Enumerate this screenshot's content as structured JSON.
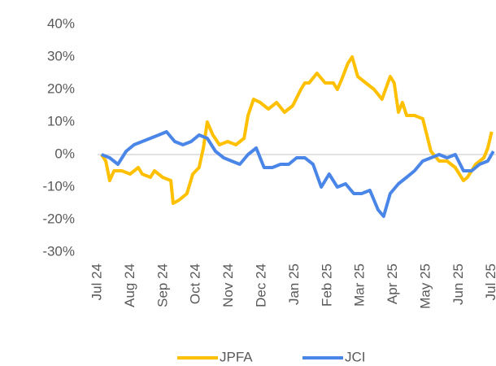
{
  "chart_data": {
    "type": "line",
    "series": [
      {
        "name": "JPFA",
        "color": "#ffc000",
        "x": [
          0.12,
          0.25,
          0.37,
          0.5,
          0.74,
          0.99,
          1.24,
          1.36,
          1.61,
          1.73,
          1.98,
          2.23,
          2.3,
          2.48,
          2.72,
          2.9,
          3.09,
          3.22,
          3.34,
          3.51,
          3.71,
          3.96,
          4.21,
          4.46,
          4.58,
          4.75,
          4.95,
          5.2,
          5.45,
          5.69,
          5.94,
          6.19,
          6.31,
          6.44,
          6.68,
          6.93,
          7.18,
          7.3,
          7.43,
          7.62,
          7.75,
          7.92,
          8.17,
          8.42,
          8.66,
          8.91,
          9.03,
          9.16,
          9.28,
          9.41,
          9.65,
          9.9,
          10.15,
          10.4,
          10.64,
          10.89,
          11.14,
          11.26,
          11.51,
          11.76,
          11.88,
          12.0
        ],
        "values": [
          0,
          -2,
          -8,
          -5,
          -5,
          -6,
          -4,
          -6,
          -7,
          -5,
          -7,
          -8,
          -15,
          -14,
          -12,
          -6,
          -4,
          2,
          10,
          6,
          3,
          4,
          3,
          5,
          12,
          17,
          16,
          14,
          16,
          13,
          15,
          20,
          22,
          22,
          25,
          22,
          22,
          20,
          23,
          28,
          30,
          24,
          22,
          20,
          17,
          24,
          22,
          13,
          16,
          12,
          12,
          11,
          1,
          -2,
          -2,
          -4,
          -8,
          -7,
          -3,
          -1,
          2,
          7
        ]
      },
      {
        "name": "JCI",
        "color": "#4a86e8",
        "x": [
          0.12,
          0.37,
          0.62,
          0.87,
          1.11,
          1.36,
          1.61,
          1.86,
          2.1,
          2.35,
          2.6,
          2.85,
          3.09,
          3.34,
          3.59,
          3.84,
          4.08,
          4.33,
          4.58,
          4.83,
          5.07,
          5.32,
          5.57,
          5.82,
          6.06,
          6.31,
          6.56,
          6.81,
          7.05,
          7.3,
          7.55,
          7.8,
          8.04,
          8.29,
          8.54,
          8.71,
          8.91,
          9.16,
          9.41,
          9.65,
          9.9,
          10.15,
          10.4,
          10.64,
          10.89,
          11.14,
          11.39,
          11.63,
          11.88,
          12.05
        ],
        "values": [
          0,
          -1,
          -3,
          1,
          3,
          4,
          5,
          6,
          7,
          4,
          3,
          4,
          6,
          5,
          1,
          -1,
          -2,
          -3,
          0,
          2,
          -4,
          -4,
          -3,
          -3,
          -1,
          -1,
          -3,
          -10,
          -6,
          -10,
          -9,
          -12,
          -12,
          -11,
          -17,
          -19,
          -12,
          -9,
          -7,
          -5,
          -2,
          -1,
          0,
          -1,
          0,
          -5,
          -5,
          -3,
          -2,
          1
        ]
      }
    ],
    "xlim": [
      0,
      12.13
    ],
    "xticks": [
      {
        "value": 0,
        "label": "Jul 24"
      },
      {
        "value": 1,
        "label": "Aug 24"
      },
      {
        "value": 2,
        "label": "Sep 24"
      },
      {
        "value": 3,
        "label": "Oct 24"
      },
      {
        "value": 4,
        "label": "Nov 24"
      },
      {
        "value": 5,
        "label": "Dec 24"
      },
      {
        "value": 6,
        "label": "Jan 25"
      },
      {
        "value": 7,
        "label": "Feb 25"
      },
      {
        "value": 8,
        "label": "Mar 25"
      },
      {
        "value": 9,
        "label": "Apr 25"
      },
      {
        "value": 10,
        "label": "May 25"
      },
      {
        "value": 11,
        "label": "Jun 25"
      },
      {
        "value": 12,
        "label": "Jul 25"
      }
    ],
    "ylim": [
      -30,
      40
    ],
    "yticks": [
      {
        "value": -30,
        "label": "-30%"
      },
      {
        "value": -20,
        "label": "-20%"
      },
      {
        "value": -10,
        "label": "-10%"
      },
      {
        "value": 0,
        "label": "0%"
      },
      {
        "value": 10,
        "label": "10%"
      },
      {
        "value": 20,
        "label": "20%"
      },
      {
        "value": 30,
        "label": "30%"
      },
      {
        "value": 40,
        "label": "40%"
      }
    ],
    "legend": "bottom"
  }
}
